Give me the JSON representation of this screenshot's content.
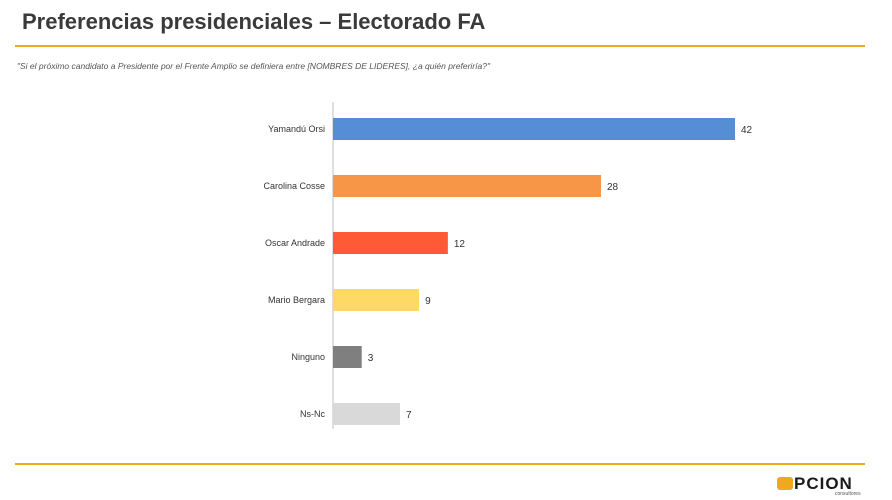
{
  "header": {
    "title": "Preferencias presidenciales – Electorado FA",
    "question": "\"Si el próximo candidato a Presidente por el Frente Amplio se definiera entre [NOMBRES DE LIDERES], ¿a quién preferiría?\""
  },
  "chart_data": {
    "type": "bar",
    "orientation": "horizontal",
    "categories": [
      "Yamandú Orsi",
      "Carolina Cosse",
      "Oscar Andrade",
      "Mario Bergara",
      "Ninguno",
      "Ns-Nc"
    ],
    "values": [
      42,
      28,
      12,
      9,
      3,
      7
    ],
    "colors": [
      "#558ed5",
      "#f79646",
      "#ff5a36",
      "#ffd966",
      "#7f7f7f",
      "#d9d9d9"
    ],
    "xlim": [
      0,
      42
    ],
    "grid": false,
    "legend": "none",
    "title": "",
    "xlabel": "",
    "ylabel": ""
  },
  "brand": {
    "logo_text": "PCION",
    "logo_sub": "consultores",
    "accent_color": "#f0a81e"
  }
}
